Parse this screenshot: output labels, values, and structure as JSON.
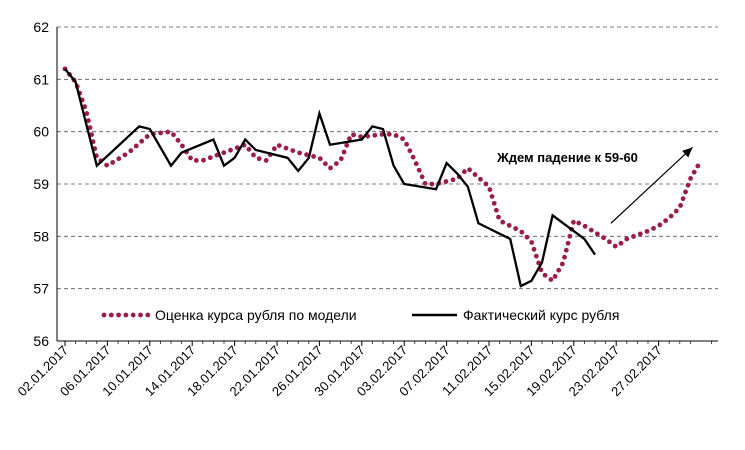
{
  "chart_data": {
    "type": "line",
    "title": "",
    "xlabel": "",
    "ylabel": "",
    "ylim": [
      56,
      62
    ],
    "yticks": [
      56,
      57,
      58,
      59,
      60,
      61,
      62
    ],
    "grid": "horizontal dashed",
    "legend_placement": "bottom",
    "x_ticks": [
      "02.01.2017",
      "06.01.2017",
      "10.01.2017",
      "14.01.2017",
      "18.01.2017",
      "22.01.2017",
      "26.01.2017",
      "30.01.2017",
      "03.02.2017",
      "07.02.2017",
      "11.02.2017",
      "15.02.2017",
      "19.02.2017",
      "23.02.2017",
      "27.02.2017"
    ],
    "series": [
      {
        "name": "Оценка курса рубля по модели",
        "style": "dotted",
        "color": "#9b1b4b",
        "points": [
          {
            "x": 0,
            "y": 61.2
          },
          {
            "x": 1,
            "y": 60.95
          },
          {
            "x": 2,
            "y": 60.4
          },
          {
            "x": 3,
            "y": 59.5
          },
          {
            "x": 4,
            "y": 59.35
          },
          {
            "x": 6,
            "y": 59.6
          },
          {
            "x": 8,
            "y": 59.95
          },
          {
            "x": 10,
            "y": 60.0
          },
          {
            "x": 11,
            "y": 59.75
          },
          {
            "x": 12,
            "y": 59.45
          },
          {
            "x": 13,
            "y": 59.45
          },
          {
            "x": 15,
            "y": 59.6
          },
          {
            "x": 17,
            "y": 59.75
          },
          {
            "x": 18,
            "y": 59.5
          },
          {
            "x": 19,
            "y": 59.45
          },
          {
            "x": 20,
            "y": 59.75
          },
          {
            "x": 22,
            "y": 59.6
          },
          {
            "x": 24,
            "y": 59.5
          },
          {
            "x": 25,
            "y": 59.3
          },
          {
            "x": 26,
            "y": 59.45
          },
          {
            "x": 27,
            "y": 59.95
          },
          {
            "x": 28,
            "y": 59.9
          },
          {
            "x": 30,
            "y": 59.95
          },
          {
            "x": 31,
            "y": 59.95
          },
          {
            "x": 32,
            "y": 59.85
          },
          {
            "x": 33,
            "y": 59.45
          },
          {
            "x": 34,
            "y": 59.0
          },
          {
            "x": 35,
            "y": 59.0
          },
          {
            "x": 36,
            "y": 59.05
          },
          {
            "x": 37,
            "y": 59.1
          },
          {
            "x": 38,
            "y": 59.3
          },
          {
            "x": 40,
            "y": 58.95
          },
          {
            "x": 41,
            "y": 58.3
          },
          {
            "x": 43,
            "y": 58.1
          },
          {
            "x": 44,
            "y": 57.9
          },
          {
            "x": 45,
            "y": 57.3
          },
          {
            "x": 46,
            "y": 57.15
          },
          {
            "x": 47,
            "y": 57.5
          },
          {
            "x": 48,
            "y": 58.3
          },
          {
            "x": 49,
            "y": 58.2
          },
          {
            "x": 51,
            "y": 57.95
          },
          {
            "x": 52,
            "y": 57.8
          },
          {
            "x": 53,
            "y": 57.95
          },
          {
            "x": 55,
            "y": 58.1
          },
          {
            "x": 56,
            "y": 58.2
          },
          {
            "x": 57,
            "y": 58.35
          },
          {
            "x": 58,
            "y": 58.55
          },
          {
            "x": 59,
            "y": 59.1
          },
          {
            "x": 60,
            "y": 59.45
          }
        ]
      },
      {
        "name": "Фактический курс рубля",
        "style": "solid",
        "color": "#000000",
        "points": [
          {
            "x": 0,
            "y": 61.2
          },
          {
            "x": 1,
            "y": 60.95
          },
          {
            "x": 3,
            "y": 59.35
          },
          {
            "x": 7,
            "y": 60.1
          },
          {
            "x": 8,
            "y": 60.05
          },
          {
            "x": 10,
            "y": 59.35
          },
          {
            "x": 11,
            "y": 59.6
          },
          {
            "x": 14,
            "y": 59.85
          },
          {
            "x": 15,
            "y": 59.35
          },
          {
            "x": 16,
            "y": 59.5
          },
          {
            "x": 17,
            "y": 59.85
          },
          {
            "x": 18,
            "y": 59.65
          },
          {
            "x": 21,
            "y": 59.5
          },
          {
            "x": 22,
            "y": 59.25
          },
          {
            "x": 23,
            "y": 59.5
          },
          {
            "x": 24,
            "y": 60.35
          },
          {
            "x": 25,
            "y": 59.75
          },
          {
            "x": 28,
            "y": 59.85
          },
          {
            "x": 29,
            "y": 60.1
          },
          {
            "x": 30,
            "y": 60.05
          },
          {
            "x": 31,
            "y": 59.35
          },
          {
            "x": 32,
            "y": 59.0
          },
          {
            "x": 35,
            "y": 58.9
          },
          {
            "x": 36,
            "y": 59.4
          },
          {
            "x": 37,
            "y": 59.2
          },
          {
            "x": 38,
            "y": 58.95
          },
          {
            "x": 39,
            "y": 58.25
          },
          {
            "x": 42,
            "y": 57.95
          },
          {
            "x": 43,
            "y": 57.05
          },
          {
            "x": 44,
            "y": 57.15
          },
          {
            "x": 45,
            "y": 57.5
          },
          {
            "x": 46,
            "y": 58.4
          },
          {
            "x": 49,
            "y": 57.95
          },
          {
            "x": 50,
            "y": 57.65
          }
        ]
      }
    ],
    "annotations": [
      {
        "text": "Ждем падение к 59-60",
        "arrow_from": {
          "x": 51.5,
          "y": 58.25
        },
        "arrow_to": {
          "x": 59.2,
          "y": 59.7
        }
      }
    ]
  }
}
